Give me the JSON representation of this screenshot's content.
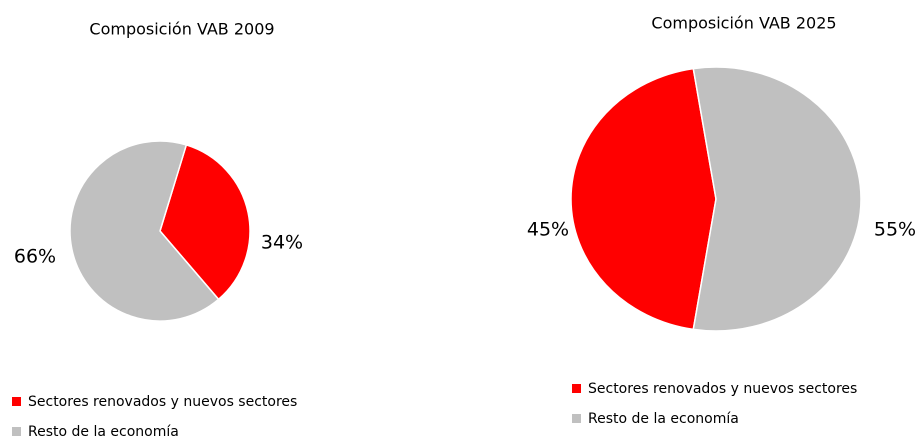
{
  "chart_data": [
    {
      "type": "pie",
      "title": "Composición VAB 2009",
      "categories": [
        "Sectores renovados y nuevos sectores",
        "Resto de la economía"
      ],
      "values": [
        34,
        66
      ],
      "value_labels": [
        "34%",
        "66%"
      ],
      "colors": [
        "#ff0000",
        "#c0c0c0"
      ]
    },
    {
      "type": "pie",
      "title": "Composición VAB 2025",
      "categories": [
        "Sectores renovados y nuevos sectores",
        "Resto de la economía"
      ],
      "values": [
        45,
        55
      ],
      "value_labels": [
        "45%",
        "55%"
      ],
      "colors": [
        "#ff0000",
        "#c0c0c0"
      ]
    }
  ]
}
